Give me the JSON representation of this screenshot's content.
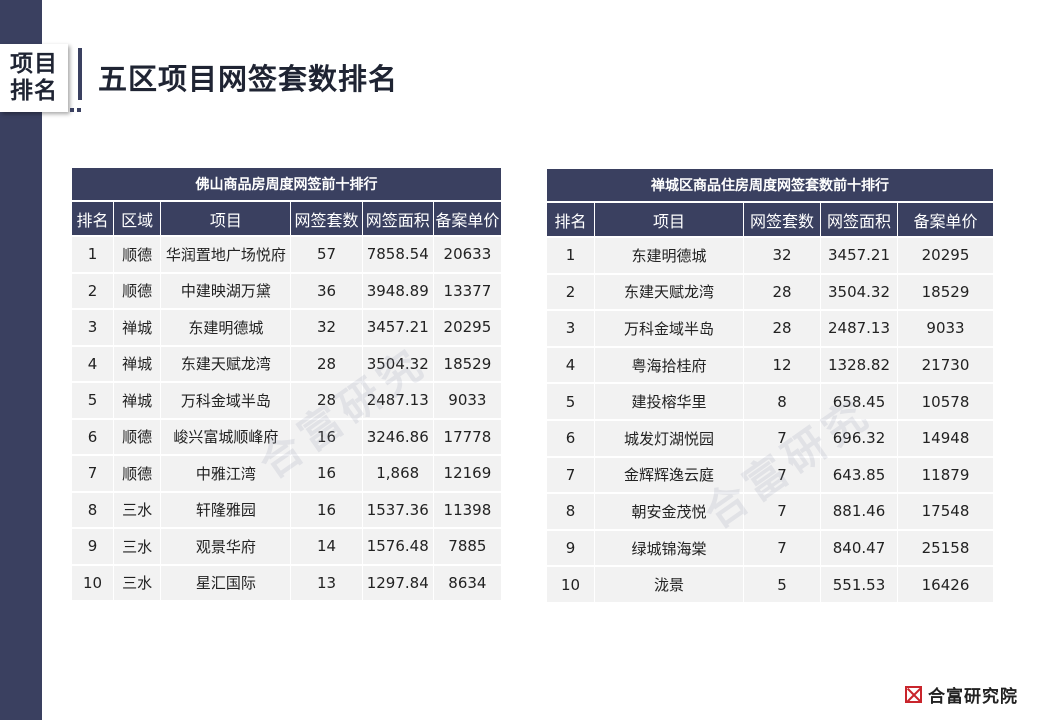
{
  "section_tag": {
    "line1": "项目",
    "line2": "排名"
  },
  "page_title": "五区项目网签套数排名",
  "table_foshan": {
    "caption": "佛山商品房周度网签前十排行",
    "headers": [
      "排名",
      "区域",
      "项目",
      "网签套数",
      "网签面积",
      "备案单价"
    ],
    "rows": [
      [
        "1",
        "顺德",
        "华润置地广场悦府",
        "57",
        "7858.54",
        "20633"
      ],
      [
        "2",
        "顺德",
        "中建映湖万黛",
        "36",
        "3948.89",
        "13377"
      ],
      [
        "3",
        "禅城",
        "东建明德城",
        "32",
        "3457.21",
        "20295"
      ],
      [
        "4",
        "禅城",
        "东建天赋龙湾",
        "28",
        "3504.32",
        "18529"
      ],
      [
        "5",
        "禅城",
        "万科金域半岛",
        "28",
        "2487.13",
        "9033"
      ],
      [
        "6",
        "顺德",
        "峻兴富城顺峰府",
        "16",
        "3246.86",
        "17778"
      ],
      [
        "7",
        "顺德",
        "中雅江湾",
        "16",
        "1,868",
        "12169"
      ],
      [
        "8",
        "三水",
        "轩隆雅园",
        "16",
        "1537.36",
        "11398"
      ],
      [
        "9",
        "三水",
        "观景华府",
        "14",
        "1576.48",
        "7885"
      ],
      [
        "10",
        "三水",
        "星汇国际",
        "13",
        "1297.84",
        "8634"
      ]
    ]
  },
  "table_chancheng": {
    "caption": "禅城区商品住房周度网签套数前十排行",
    "headers": [
      "排名",
      "项目",
      "网签套数",
      "网签面积",
      "备案单价"
    ],
    "rows": [
      [
        "1",
        "东建明德城",
        "32",
        "3457.21",
        "20295"
      ],
      [
        "2",
        "东建天赋龙湾",
        "28",
        "3504.32",
        "18529"
      ],
      [
        "3",
        "万科金域半岛",
        "28",
        "2487.13",
        "9033"
      ],
      [
        "4",
        "粤海拾桂府",
        "12",
        "1328.82",
        "21730"
      ],
      [
        "5",
        "建投榕华里",
        "8",
        "658.45",
        "10578"
      ],
      [
        "6",
        "城发灯湖悦园",
        "7",
        "696.32",
        "14948"
      ],
      [
        "7",
        "金辉辉逸云庭",
        "7",
        "643.85",
        "11879"
      ],
      [
        "8",
        "朝安金茂悦",
        "7",
        "881.46",
        "17548"
      ],
      [
        "9",
        "绿城锦海棠",
        "7",
        "840.47",
        "25158"
      ],
      [
        "10",
        "泷景",
        "5",
        "551.53",
        "16426"
      ]
    ]
  },
  "watermark_text": "合富研究",
  "brand": {
    "name": "合富研究院",
    "logo_color": "#c9252c"
  },
  "colors": {
    "primary": "#3a4060",
    "row_bg": "#f2f2f2"
  }
}
